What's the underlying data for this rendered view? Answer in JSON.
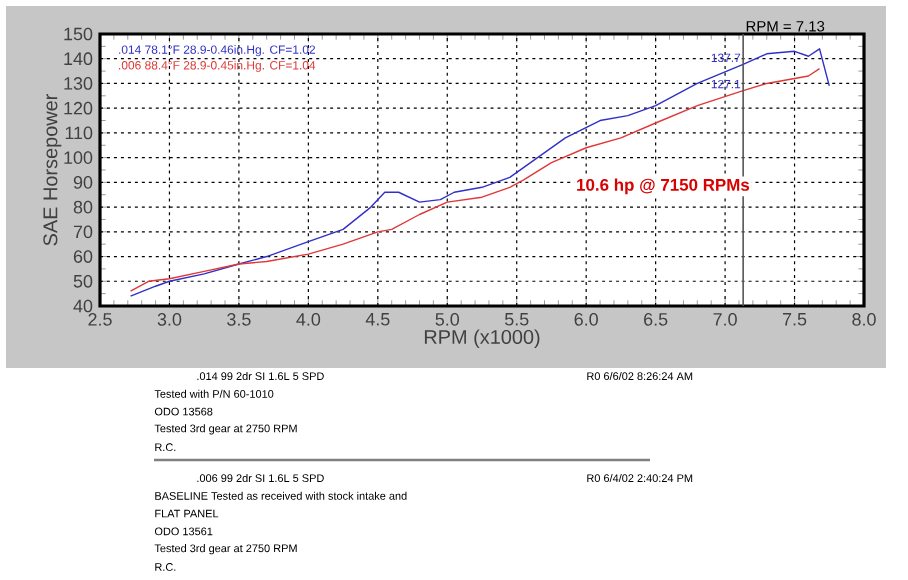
{
  "chart_data": {
    "type": "line",
    "xlabel": "RPM (x1000)",
    "ylabel": "SAE Horsepower",
    "xlim": [
      2.5,
      8.0
    ],
    "xticks": [
      {
        "value": 2.5,
        "label": "2.5"
      },
      {
        "value": 3,
        "label": "3.0"
      },
      {
        "value": 3.5,
        "label": "3.5"
      },
      {
        "value": 4,
        "label": "4.0"
      },
      {
        "value": 4.5,
        "label": "4.5"
      },
      {
        "value": 5,
        "label": "5.0"
      },
      {
        "value": 5.5,
        "label": "5.5"
      },
      {
        "value": 6,
        "label": "6.0"
      },
      {
        "value": 6.5,
        "label": "6.5"
      },
      {
        "value": 7,
        "label": "7.0"
      },
      {
        "value": 7.5,
        "label": "7.5"
      },
      {
        "value": 8,
        "label": "8.0"
      }
    ],
    "ylim": [
      40,
      150
    ],
    "yticks": [
      40,
      50,
      60,
      70,
      80,
      90,
      100,
      110,
      120,
      130,
      140,
      150
    ],
    "grid": true,
    "legend": "top left",
    "marker": "none",
    "line_style": "solid",
    "series": [
      {
        "name": ".014 78.1°F 28.9-0.46in.Hg. CF=1.02",
        "color": "#3030c8",
        "x": [
          2.72,
          2.9,
          3.0,
          3.25,
          3.5,
          3.7,
          4.0,
          4.25,
          4.45,
          4.55,
          4.65,
          4.8,
          4.95,
          5.05,
          5.25,
          5.45,
          5.6,
          5.85,
          6.1,
          6.3,
          6.5,
          6.8,
          7.13,
          7.3,
          7.5,
          7.6,
          7.68,
          7.75
        ],
        "values": [
          44,
          48,
          50,
          53,
          57,
          60,
          66,
          71,
          80,
          86,
          86,
          82,
          83,
          86,
          88,
          92,
          98,
          108,
          115,
          117,
          121,
          130,
          137.7,
          142,
          143,
          141,
          144,
          129
        ]
      },
      {
        "name": ".006 88.4°F 28.9-0.45in.Hg. CF=1.04",
        "color": "#e03838",
        "x": [
          2.72,
          2.85,
          3.0,
          3.25,
          3.5,
          3.7,
          4.0,
          4.25,
          4.5,
          4.6,
          4.8,
          5.0,
          5.25,
          5.45,
          5.55,
          5.75,
          6.0,
          6.25,
          6.5,
          6.8,
          7.13,
          7.3,
          7.5,
          7.6,
          7.68
        ],
        "values": [
          46,
          50,
          51,
          54,
          57,
          58,
          61,
          65,
          70,
          71,
          77,
          82,
          84,
          88,
          91,
          98,
          104,
          108,
          114,
          121,
          127.1,
          130,
          132,
          133,
          136
        ]
      }
    ],
    "ref_lines": [
      {
        "axis": "x",
        "value": 7.13,
        "label": "RPM = 7.13",
        "color": "#555555"
      }
    ],
    "annotations": [
      "10.6 hp @ 7150 RPMs",
      {
        "text": "137.7",
        "x": 7.13,
        "y": 137.7
      },
      {
        "text": "127.1",
        "x": 7.13,
        "y": 127.1
      },
      ".014   99 2dr   SI 1.6L 5 SPD",
      "R0   6/6/02 8:26:24 AM",
      "Tested with P/N 60-1010",
      "ODO 13568",
      "Tested 3rd gear at 2750 RPM",
      "R.C.",
      ".006   99 2dr   SI 1.6L 5 SPD",
      "R0   6/4/02 2:40:24 PM",
      "BASELINE Tested as received with stock intake and",
      "FLAT PANEL",
      "ODO 13561",
      "Tested 3rd gear at 2750 RPM",
      "R.C."
    ]
  }
}
